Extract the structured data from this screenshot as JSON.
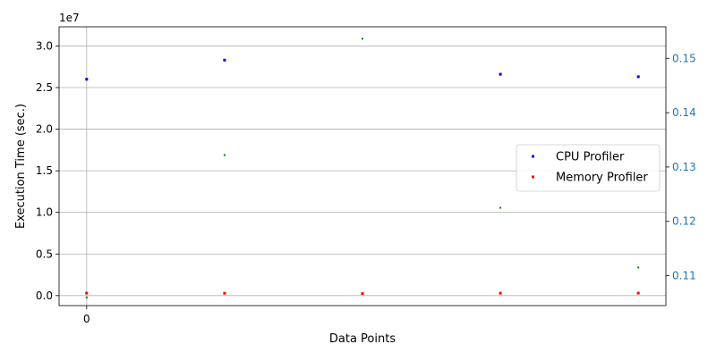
{
  "chart_data": {
    "type": "scatter",
    "x": [
      0,
      1,
      2,
      3,
      4
    ],
    "x_ticks": [
      {
        "value": 0,
        "label": "0"
      }
    ],
    "xlabel": "Data Points",
    "ylabel": "Execution Time (sec.)",
    "y_offset_label": "1e7",
    "ylim": [
      -1200000,
      32300000
    ],
    "y_ticks": [
      {
        "value": 0,
        "label": "0.0"
      },
      {
        "value": 5000000,
        "label": "0.5"
      },
      {
        "value": 10000000,
        "label": "1.0"
      },
      {
        "value": 15000000,
        "label": "1.5"
      },
      {
        "value": 20000000,
        "label": "2.0"
      },
      {
        "value": 25000000,
        "label": "2.5"
      },
      {
        "value": 30000000,
        "label": "3.0"
      }
    ],
    "y2lim": [
      0.1045,
      0.1558
    ],
    "y2_ticks": [
      {
        "value": 0.11,
        "label": "0.11"
      },
      {
        "value": 0.12,
        "label": "0.12"
      },
      {
        "value": 0.13,
        "label": "0.13"
      },
      {
        "value": 0.14,
        "label": "0.14"
      },
      {
        "value": 0.15,
        "label": "0.15"
      }
    ],
    "xlim": [
      -0.2,
      4.2
    ],
    "grid": true,
    "legend_position": "center-right",
    "series": [
      {
        "name": "CPU Profiler",
        "color": "#0000ff",
        "axis": "left",
        "values": [
          26000000,
          28300000,
          null,
          26600000,
          26300000
        ]
      },
      {
        "name": "Memory Profiler",
        "color": "#ff0000",
        "axis": "left",
        "values": [
          300000,
          280000,
          240000,
          290000,
          300000
        ]
      },
      {
        "color": "#008000",
        "axis": "right",
        "values": [
          0.106,
          0.1322,
          0.1536,
          0.1225,
          0.1115
        ]
      }
    ],
    "y2_tick_color": "#1f77b4"
  }
}
